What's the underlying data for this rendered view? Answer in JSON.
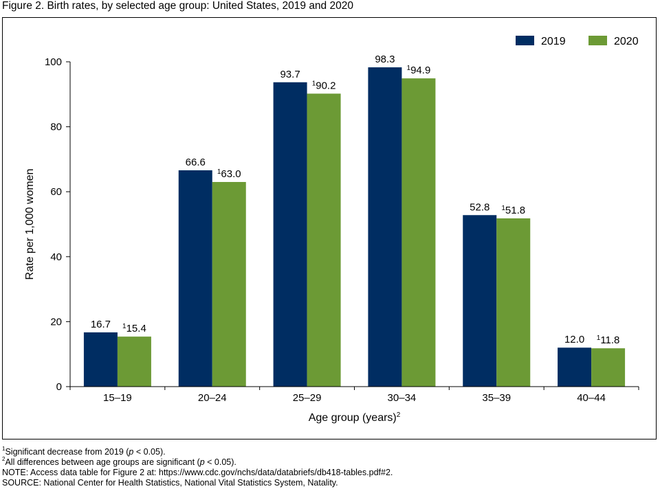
{
  "title": "Figure 2. Birth rates, by selected age group: United States, 2019 and 2020",
  "colors": {
    "2019": "#002d62",
    "2020": "#6c9a35"
  },
  "chart_data": {
    "type": "bar",
    "categories": [
      "15–19",
      "20–24",
      "25–29",
      "30–34",
      "35–39",
      "40–44"
    ],
    "series": [
      {
        "name": "2019",
        "values": [
          16.7,
          66.6,
          93.7,
          98.3,
          52.8,
          12.0
        ],
        "labels": [
          "16.7",
          "66.6",
          "93.7",
          "98.3",
          "52.8",
          "12.0"
        ],
        "label_sup": ""
      },
      {
        "name": "2020",
        "values": [
          15.4,
          63.0,
          90.2,
          94.9,
          51.8,
          11.8
        ],
        "labels": [
          "15.4",
          "63.0",
          "90.2",
          "94.9",
          "51.8",
          "11.8"
        ],
        "label_sup": "1"
      }
    ],
    "ylabel": "Rate per 1,000 women",
    "xlabel": "Age group (years)",
    "xlabel_sup": "2",
    "ylim": [
      0,
      100
    ],
    "yticks": [
      "0",
      "20",
      "40",
      "60",
      "80",
      "100"
    ],
    "legend_position": "top-right",
    "grid": false
  },
  "footnotes": {
    "note1_sup": "1",
    "note1_pre": "Significant decrease from 2019 (",
    "note1_p": "p",
    "note1_post": " < 0.05).",
    "note2_sup": "2",
    "note2_pre": "All differences between age groups are significant (",
    "note2_p": "p",
    "note2_post": " < 0.05).",
    "note3": "NOTE: Access data table for Figure 2 at: https://www.cdc.gov/nchs/data/databriefs/db418-tables.pdf#2.",
    "source": "SOURCE: National Center for Health Statistics, National Vital Statistics System, Natality."
  }
}
